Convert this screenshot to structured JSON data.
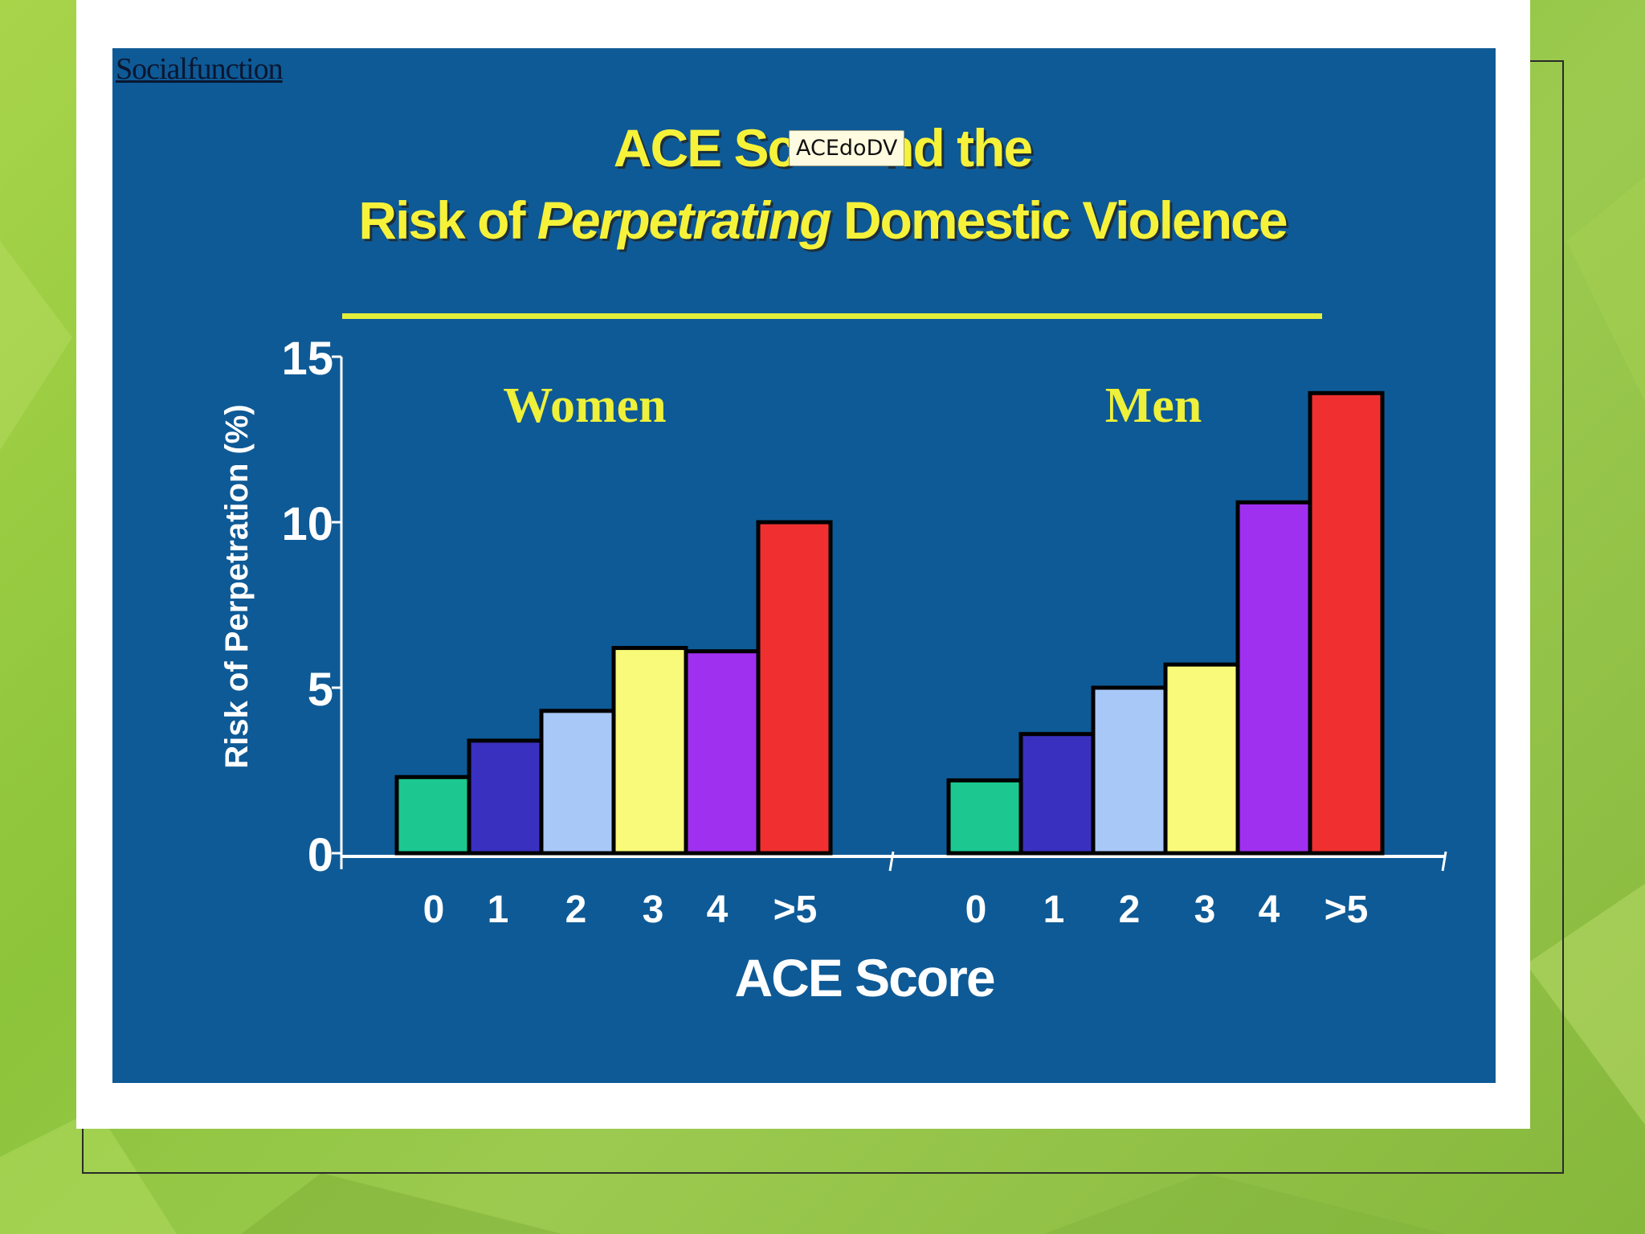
{
  "slide": {
    "corner_label": "Socialfunction",
    "title_line1_a": "ACE Sc",
    "title_line1_b": "nd the",
    "title_line2_a": "Risk of ",
    "title_line2_em": "Perpetrating",
    "title_line2_b": " Domestic Violence",
    "tooltip": "ACEdoDV"
  },
  "colors": {
    "slide_bg": "#0e5a96",
    "title": "#f6f23a",
    "group_label": "#eef03a",
    "bar_colors": [
      "#1cc890",
      "#3a30c0",
      "#a8c8f8",
      "#fafa7a",
      "#a030f0",
      "#f03030"
    ]
  },
  "chart_data": {
    "type": "bar",
    "title": "ACE Score and the Risk of Perpetrating Domestic Violence",
    "ylabel": "Risk of Perpetration (%)",
    "xlabel": "ACE Score",
    "ylim": [
      0,
      15
    ],
    "yticks": [
      "0",
      "5",
      "10",
      "15"
    ],
    "groups": [
      {
        "name": "Women",
        "categories": [
          "0",
          "1",
          "2",
          "3",
          "4",
          ">5"
        ],
        "values": [
          2.3,
          3.4,
          4.3,
          6.2,
          6.1,
          10.0
        ]
      },
      {
        "name": "Men",
        "categories": [
          "0",
          "1",
          "2",
          "3",
          "4",
          ">5"
        ],
        "values": [
          2.2,
          3.6,
          5.0,
          5.7,
          10.6,
          13.9
        ]
      }
    ]
  }
}
